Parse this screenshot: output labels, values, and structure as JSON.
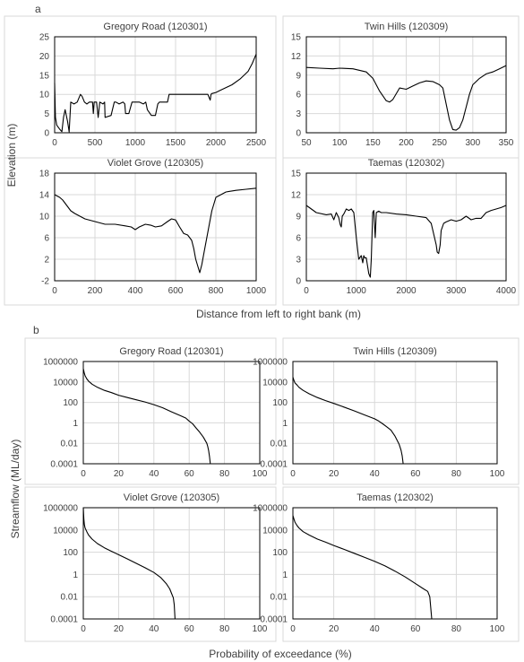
{
  "figure": {
    "panel_a_label": "a",
    "panel_b_label": "b",
    "panel_a_ylabel": "Elevation (m)",
    "panel_a_xlabel": "Distance from left to right bank (m)",
    "panel_b_ylabel": "Streamflow (ML/day)",
    "panel_b_xlabel": "Probability of exceedance (%)"
  },
  "chart_data": [
    {
      "type": "line",
      "panel": "a",
      "title": "Gregory Road (120301)",
      "xlim": [
        0,
        2500
      ],
      "ylim": [
        0,
        25
      ],
      "xticks": [
        0,
        500,
        1000,
        1500,
        2000,
        2500
      ],
      "yticks": [
        0,
        5,
        10,
        15,
        20,
        25
      ],
      "grid": true,
      "series": [
        {
          "x": [
            0,
            10,
            25,
            60,
            90,
            110,
            130,
            160,
            180,
            200,
            240,
            280,
            320,
            340,
            370,
            400,
            430,
            470,
            480,
            490,
            520,
            540,
            560,
            600,
            620,
            625,
            700,
            740,
            760,
            800,
            850,
            870,
            880,
            920,
            960,
            980,
            1020,
            1050,
            1100,
            1130,
            1150,
            1200,
            1250,
            1280,
            1300,
            1400,
            1420,
            1500,
            1600,
            1700,
            1900,
            1930,
            1940,
            1950,
            2000,
            2050,
            2100,
            2200,
            2300,
            2400,
            2450,
            2500
          ],
          "y": [
            13,
            4,
            2,
            1,
            0.3,
            4,
            6,
            3,
            0.2,
            8,
            7.5,
            8,
            10,
            9.5,
            8,
            7.5,
            8,
            8,
            5,
            8,
            8,
            4,
            8,
            7.5,
            8,
            4,
            4.5,
            8,
            8,
            7.5,
            8,
            7.5,
            5,
            5,
            8,
            8,
            8,
            8,
            7.5,
            8,
            6,
            4.5,
            4.5,
            7.5,
            8,
            8,
            10,
            10,
            10,
            10,
            10,
            8.5,
            10,
            10.2,
            10.5,
            11,
            11.5,
            12.5,
            14,
            16,
            18,
            20.5
          ]
        }
      ]
    },
    {
      "type": "line",
      "panel": "a",
      "title": "Twin Hills (120309)",
      "xlim": [
        50,
        350
      ],
      "ylim": [
        0,
        15
      ],
      "xticks": [
        50,
        100,
        150,
        200,
        250,
        300,
        350
      ],
      "yticks": [
        0,
        3,
        6,
        9,
        12,
        15
      ],
      "grid": true,
      "series": [
        {
          "x": [
            50,
            70,
            90,
            100,
            120,
            140,
            150,
            160,
            170,
            175,
            180,
            190,
            200,
            210,
            220,
            230,
            240,
            250,
            255,
            260,
            265,
            270,
            275,
            280,
            285,
            290,
            295,
            300,
            310,
            320,
            330,
            340,
            350
          ],
          "y": [
            10.2,
            10.1,
            10,
            10.1,
            10,
            9.5,
            8.5,
            6.5,
            5,
            4.8,
            5.2,
            7,
            6.8,
            7.3,
            7.8,
            8.1,
            8,
            7.5,
            7,
            4.5,
            2,
            0.5,
            0.4,
            0.8,
            2,
            4,
            6,
            7.5,
            8.5,
            9.2,
            9.5,
            10,
            10.5
          ]
        }
      ]
    },
    {
      "type": "line",
      "panel": "a",
      "title": "Violet Grove (120305)",
      "xlim": [
        0,
        1000
      ],
      "ylim": [
        -2,
        18
      ],
      "xticks": [
        0,
        200,
        400,
        600,
        800,
        1000
      ],
      "yticks": [
        -2,
        2,
        6,
        10,
        14,
        18
      ],
      "grid": true,
      "series": [
        {
          "x": [
            0,
            25,
            40,
            60,
            80,
            100,
            150,
            200,
            250,
            300,
            350,
            380,
            400,
            420,
            450,
            480,
            500,
            530,
            560,
            580,
            600,
            620,
            640,
            660,
            670,
            680,
            690,
            700,
            720,
            730,
            740,
            760,
            780,
            800,
            850,
            900,
            950,
            1000
          ],
          "y": [
            14,
            13.5,
            13,
            12,
            11,
            10.5,
            9.5,
            9,
            8.5,
            8.5,
            8.2,
            8,
            7.5,
            8,
            8.5,
            8.3,
            8,
            8.2,
            9,
            9.5,
            9.3,
            8,
            6.8,
            6.5,
            6,
            5.5,
            4,
            2,
            -0.5,
            1,
            3,
            7,
            11,
            13.5,
            14.5,
            14.8,
            15,
            15.2
          ]
        }
      ]
    },
    {
      "type": "line",
      "panel": "a",
      "title": "Taemas (120302)",
      "xlim": [
        0,
        4000
      ],
      "ylim": [
        0,
        15
      ],
      "xticks": [
        0,
        1000,
        2000,
        3000,
        4000
      ],
      "yticks": [
        0,
        3,
        6,
        9,
        12,
        15
      ],
      "grid": true,
      "series": [
        {
          "x": [
            0,
            100,
            200,
            400,
            500,
            550,
            600,
            650,
            680,
            700,
            720,
            750,
            800,
            850,
            900,
            950,
            1000,
            1050,
            1100,
            1130,
            1150,
            1170,
            1200,
            1250,
            1280,
            1300,
            1330,
            1350,
            1380,
            1400,
            1450,
            1500,
            1600,
            1800,
            2000,
            2200,
            2400,
            2500,
            2600,
            2620,
            2650,
            2680,
            2700,
            2750,
            2800,
            2900,
            3000,
            3100,
            3200,
            3300,
            3400,
            3500,
            3600,
            3700,
            3800,
            3900,
            4000
          ],
          "y": [
            10.5,
            10,
            9.5,
            9.2,
            9.3,
            8.5,
            9.5,
            8.8,
            7.8,
            7.5,
            9,
            9.3,
            10,
            9.8,
            10,
            9.5,
            6,
            3,
            3.5,
            2.5,
            3.5,
            3.2,
            3.2,
            1,
            0.5,
            3,
            9.5,
            9.8,
            6,
            9.5,
            9.7,
            9.5,
            9.5,
            9.3,
            9.2,
            9,
            8.8,
            8,
            5,
            4,
            3.8,
            5,
            7,
            8,
            8.2,
            8.5,
            8.3,
            8.5,
            9,
            8.5,
            8.7,
            8.7,
            9.5,
            9.8,
            10,
            10.2,
            10.5
          ]
        }
      ]
    },
    {
      "type": "line",
      "panel": "b",
      "title": "Gregory Road (120301)",
      "xlim": [
        0,
        100
      ],
      "ylim": [
        0.0001,
        1000000
      ],
      "yscale": "log",
      "xticks": [
        0,
        20,
        40,
        60,
        80,
        100
      ],
      "ytick_labels": [
        "0.0001",
        "0.01",
        "1",
        "100",
        "10000",
        "1000000"
      ],
      "grid": true,
      "series": [
        {
          "x": [
            0,
            0.5,
            1,
            2,
            3,
            5,
            8,
            12,
            16,
            20,
            25,
            30,
            35,
            40,
            45,
            50,
            55,
            58,
            60,
            62,
            64,
            66,
            68,
            70,
            70.5,
            71,
            71.5,
            72
          ],
          "y": [
            200000,
            80000,
            40000,
            20000,
            12000,
            6000,
            3000,
            1500,
            900,
            500,
            300,
            180,
            110,
            60,
            30,
            12,
            5,
            3,
            1.5,
            0.8,
            0.3,
            0.12,
            0.04,
            0.01,
            0.005,
            0.002,
            0.0005,
            0.0001
          ]
        }
      ]
    },
    {
      "type": "line",
      "panel": "b",
      "title": "Twin Hills (120309)",
      "xlim": [
        0,
        100
      ],
      "ylim": [
        0.0001,
        1000000
      ],
      "yscale": "log",
      "xticks": [
        0,
        20,
        40,
        60,
        80,
        100
      ],
      "ytick_labels": [
        "0.0001",
        "0.01",
        "1",
        "100",
        "10000",
        "1000000"
      ],
      "grid": true,
      "series": [
        {
          "x": [
            0,
            0.5,
            1,
            2,
            3,
            5,
            8,
            12,
            16,
            20,
            25,
            30,
            35,
            40,
            42,
            44,
            46,
            48,
            50,
            51,
            52,
            52.5,
            53,
            53.5,
            54
          ],
          "y": [
            30000,
            15000,
            8000,
            5000,
            3000,
            1500,
            700,
            300,
            150,
            80,
            35,
            15,
            6,
            2.5,
            1.5,
            0.8,
            0.4,
            0.2,
            0.05,
            0.02,
            0.008,
            0.004,
            0.002,
            0.0006,
            0.0001
          ]
        }
      ]
    },
    {
      "type": "line",
      "panel": "b",
      "title": "Violet Grove (120305)",
      "xlim": [
        0,
        100
      ],
      "ylim": [
        0.0001,
        1000000
      ],
      "yscale": "log",
      "xticks": [
        0,
        20,
        40,
        60,
        80,
        100
      ],
      "ytick_labels": [
        "0.0001",
        "0.01",
        "1",
        "100",
        "10000",
        "1000000"
      ],
      "grid": true,
      "series": [
        {
          "x": [
            0,
            0.3,
            0.6,
            1,
            2,
            3,
            5,
            8,
            12,
            16,
            20,
            25,
            30,
            35,
            40,
            44,
            47,
            49,
            50,
            51,
            51.5,
            52
          ],
          "y": [
            1000000,
            100000,
            30000,
            15000,
            7000,
            3500,
            1500,
            600,
            250,
            120,
            60,
            25,
            10,
            4,
            1.5,
            0.5,
            0.15,
            0.05,
            0.02,
            0.008,
            0.002,
            0.0001
          ]
        }
      ]
    },
    {
      "type": "line",
      "panel": "b",
      "title": "Taemas (120302)",
      "xlim": [
        0,
        100
      ],
      "ylim": [
        0.0001,
        1000000
      ],
      "yscale": "log",
      "xticks": [
        0,
        20,
        40,
        60,
        80,
        100
      ],
      "ytick_labels": [
        "0.0001",
        "0.01",
        "1",
        "100",
        "10000",
        "1000000"
      ],
      "grid": true,
      "series": [
        {
          "x": [
            0,
            0.5,
            1,
            2,
            3,
            5,
            8,
            12,
            16,
            20,
            25,
            30,
            35,
            40,
            45,
            50,
            55,
            60,
            64,
            66,
            67,
            67.5,
            68
          ],
          "y": [
            200000,
            100000,
            50000,
            25000,
            15000,
            7000,
            3500,
            1500,
            800,
            400,
            180,
            80,
            35,
            15,
            6,
            2,
            0.6,
            0.15,
            0.05,
            0.03,
            0.01,
            0.001,
            0.0001
          ]
        }
      ]
    }
  ]
}
